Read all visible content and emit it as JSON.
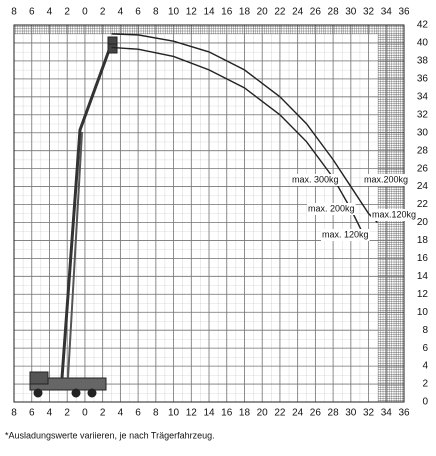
{
  "chart_data": {
    "type": "line",
    "xlim": [
      -8,
      36
    ],
    "ylim": [
      0,
      42
    ],
    "xticks": [
      {
        "value": -8,
        "label": "8"
      },
      {
        "value": -6,
        "label": "6"
      },
      {
        "value": -4,
        "label": "4"
      },
      {
        "value": -2,
        "label": "2"
      },
      0,
      2,
      4,
      6,
      8,
      10,
      12,
      14,
      16,
      18,
      20,
      22,
      24,
      26,
      28,
      30,
      32,
      34,
      36
    ],
    "yticks": [
      0,
      2,
      4,
      6,
      8,
      10,
      12,
      14,
      16,
      18,
      20,
      22,
      24,
      26,
      28,
      30,
      32,
      34,
      36,
      38,
      40,
      42
    ],
    "grid": true,
    "series": [
      {
        "color": "#222222",
        "x": [
          3,
          6,
          10,
          14,
          18,
          22,
          25,
          28,
          30,
          32,
          33
        ],
        "values": [
          41,
          40.9,
          40.2,
          39,
          37,
          34,
          31,
          27,
          24,
          21,
          20
        ]
      },
      {
        "color": "#222222",
        "x": [
          3,
          6,
          10,
          14,
          18,
          22,
          25,
          28,
          30,
          31.5
        ],
        "values": [
          39.5,
          39.3,
          38.5,
          37,
          35,
          32,
          29,
          25,
          21.5,
          18.5
        ]
      }
    ],
    "annotations": [
      "max. 300kg",
      "max.200kg",
      "max. 200kg",
      "max.120kg",
      "max. 120kg"
    ],
    "footnote": "*Ausladungswerte variieren, je nach Trägerfahrzeug."
  }
}
